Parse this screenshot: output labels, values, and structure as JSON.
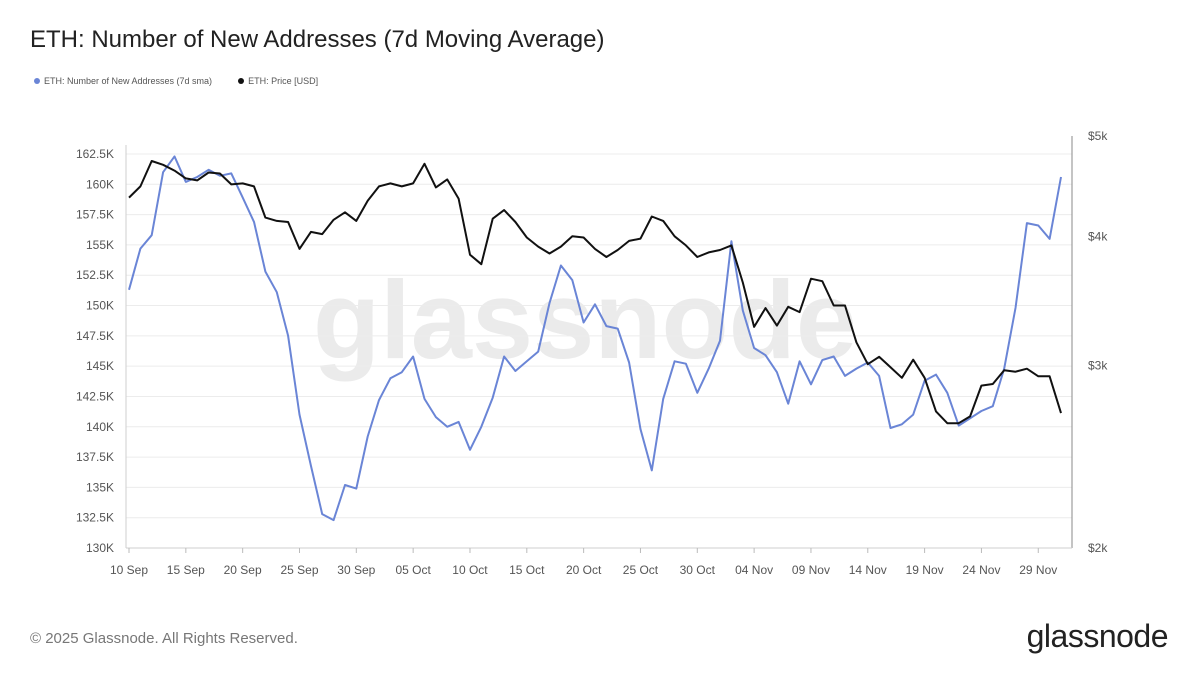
{
  "header": {
    "title": "ETH: Number of New Addresses (7d Moving Average)"
  },
  "legend": [
    {
      "label": "ETH: Number of New Addresses (7d sma)",
      "color": "#6a85d6"
    },
    {
      "label": "ETH: Price [USD]",
      "color": "#111111"
    }
  ],
  "watermark": "glassnode",
  "footer": {
    "copyright": "© 2025 Glassnode. All Rights Reserved.",
    "logo": "glassnode"
  },
  "chart_data": {
    "type": "line",
    "grid": true,
    "x_tick_labels": [
      "10 Sep",
      "15 Sep",
      "20 Sep",
      "25 Sep",
      "30 Sep",
      "05 Oct",
      "10 Oct",
      "15 Oct",
      "20 Oct",
      "25 Oct",
      "30 Oct",
      "04 Nov",
      "09 Nov",
      "14 Nov",
      "19 Nov",
      "24 Nov",
      "29 Nov"
    ],
    "x_range": [
      0,
      82
    ],
    "y_left": {
      "min": 130000,
      "max": 163500,
      "ticks": [
        130000,
        132500,
        135000,
        137500,
        140000,
        142500,
        145000,
        147500,
        150000,
        152500,
        155000,
        157500,
        160000,
        162500
      ],
      "tick_labels": [
        "130K",
        "132.5K",
        "135K",
        "137.5K",
        "140K",
        "142.5K",
        "145K",
        "147.5K",
        "150K",
        "152.5K",
        "155K",
        "157.5K",
        "160K",
        "162.5K"
      ]
    },
    "y_right": {
      "scale": "log",
      "min": 2000,
      "max": 5000,
      "ticks": [
        2000,
        3000,
        4000,
        5000
      ],
      "tick_labels": [
        "$2k",
        "$3k",
        "$4k",
        "$5k"
      ]
    },
    "series": [
      {
        "name": "ETH: Number of New Addresses (7d sma)",
        "axis": "left",
        "color": "#6a85d6",
        "x": [
          0,
          1,
          2,
          3,
          4,
          5,
          6,
          7,
          8,
          9,
          10,
          11,
          12,
          13,
          14,
          15,
          16,
          17,
          18,
          19,
          20,
          21,
          22,
          23,
          24,
          25,
          26,
          27,
          28,
          29,
          30,
          31,
          32,
          33,
          34,
          35,
          36,
          37,
          38,
          39,
          40,
          41,
          42,
          43,
          44,
          45,
          46,
          47,
          48,
          49,
          50,
          51,
          52,
          53,
          54,
          55,
          56,
          57,
          58,
          59,
          60,
          61,
          62,
          63,
          64,
          65,
          66,
          67,
          68,
          69,
          70,
          71,
          72,
          73,
          74,
          75,
          76,
          77,
          78,
          79,
          80,
          81,
          82
        ],
        "values": [
          151300,
          154700,
          155800,
          161000,
          162300,
          160200,
          160600,
          161200,
          160700,
          160900,
          158900,
          156900,
          152800,
          151100,
          147500,
          141000,
          136800,
          132800,
          132300,
          135200,
          134900,
          139200,
          142200,
          144000,
          144500,
          145800,
          142300,
          140800,
          140000,
          140400,
          138100,
          140000,
          142400,
          145800,
          144600,
          145400,
          146200,
          150200,
          153300,
          152100,
          148600,
          150100,
          148300,
          148100,
          145300,
          139800,
          136400,
          142300,
          145400,
          145200,
          142800,
          144800,
          147100,
          155300,
          149600,
          146500,
          145900,
          144500,
          141900,
          145400,
          143500,
          145500,
          145800,
          144200,
          144800,
          145300,
          144200,
          139900,
          140200,
          141000,
          143800,
          144300,
          142800,
          140100,
          140700,
          141300,
          141700,
          144800,
          149800,
          156800,
          156600,
          155500,
          160600
        ]
      },
      {
        "name": "ETH: Price [USD]",
        "axis": "right",
        "color": "#111111",
        "x": [
          0,
          1,
          2,
          3,
          4,
          5,
          6,
          7,
          8,
          9,
          10,
          11,
          12,
          13,
          14,
          15,
          16,
          17,
          18,
          19,
          20,
          21,
          22,
          23,
          24,
          25,
          26,
          27,
          28,
          29,
          30,
          31,
          32,
          33,
          34,
          35,
          36,
          37,
          38,
          39,
          40,
          41,
          42,
          43,
          44,
          45,
          46,
          47,
          48,
          49,
          50,
          51,
          52,
          53,
          54,
          55,
          56,
          57,
          58,
          59,
          60,
          61,
          62,
          63,
          64,
          65,
          66,
          67,
          68,
          69,
          70,
          71,
          72,
          73,
          74,
          75,
          76,
          77,
          78,
          79,
          80,
          81,
          82
        ],
        "values": [
          4360,
          4470,
          4730,
          4690,
          4630,
          4550,
          4530,
          4610,
          4600,
          4490,
          4500,
          4470,
          4170,
          4140,
          4130,
          3890,
          4040,
          4020,
          4150,
          4220,
          4140,
          4330,
          4470,
          4500,
          4470,
          4500,
          4700,
          4460,
          4540,
          4350,
          3840,
          3760,
          4160,
          4240,
          4130,
          3990,
          3910,
          3850,
          3910,
          4000,
          3990,
          3890,
          3820,
          3880,
          3960,
          3980,
          4180,
          4140,
          4000,
          3920,
          3820,
          3860,
          3880,
          3920,
          3610,
          3270,
          3410,
          3280,
          3420,
          3380,
          3640,
          3620,
          3430,
          3430,
          3160,
          3010,
          3060,
          2990,
          2920,
          3040,
          2920,
          2710,
          2640,
          2640,
          2680,
          2870,
          2880,
          2970,
          2960,
          2980,
          2930,
          2930,
          2700
        ]
      }
    ]
  }
}
